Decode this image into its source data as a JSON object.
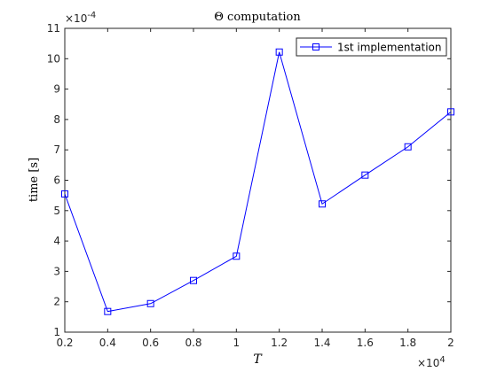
{
  "chart_data": {
    "type": "line",
    "title": "Θ computation",
    "xlabel": "T",
    "ylabel": "time [s]",
    "x_exponent_base": "×10",
    "x_exponent_power": "4",
    "y_exponent_base": "×10",
    "y_exponent_power": "-4",
    "xlim": [
      2000,
      20000
    ],
    "ylim": [
      0.0001,
      0.0011
    ],
    "x_ticks": [
      2000,
      4000,
      6000,
      8000,
      10000,
      12000,
      14000,
      16000,
      18000,
      20000
    ],
    "x_tick_labels": [
      "0.2",
      "0.4",
      "0.6",
      "0.8",
      "1",
      "1.2",
      "1.4",
      "1.6",
      "1.8",
      "2"
    ],
    "y_ticks": [
      0.0001,
      0.0002,
      0.0003,
      0.0004,
      0.0005,
      0.0006,
      0.0007,
      0.0008,
      0.0009,
      0.001,
      0.0011
    ],
    "y_tick_labels": [
      "1",
      "2",
      "3",
      "4",
      "5",
      "6",
      "7",
      "8",
      "9",
      "10",
      "11"
    ],
    "grid": false,
    "legend_position": "top-right",
    "colors": {
      "series": "#0000ff",
      "axes": "#262626"
    },
    "series": [
      {
        "name": "1st implementation",
        "marker": "square",
        "x": [
          2000,
          4000,
          6000,
          8000,
          10000,
          12000,
          14000,
          16000,
          18000,
          20000
        ],
        "y": [
          0.000555,
          0.000168,
          0.000194,
          0.00027,
          0.00035,
          0.001022,
          0.000522,
          0.000617,
          0.00071,
          0.000825
        ]
      }
    ]
  }
}
